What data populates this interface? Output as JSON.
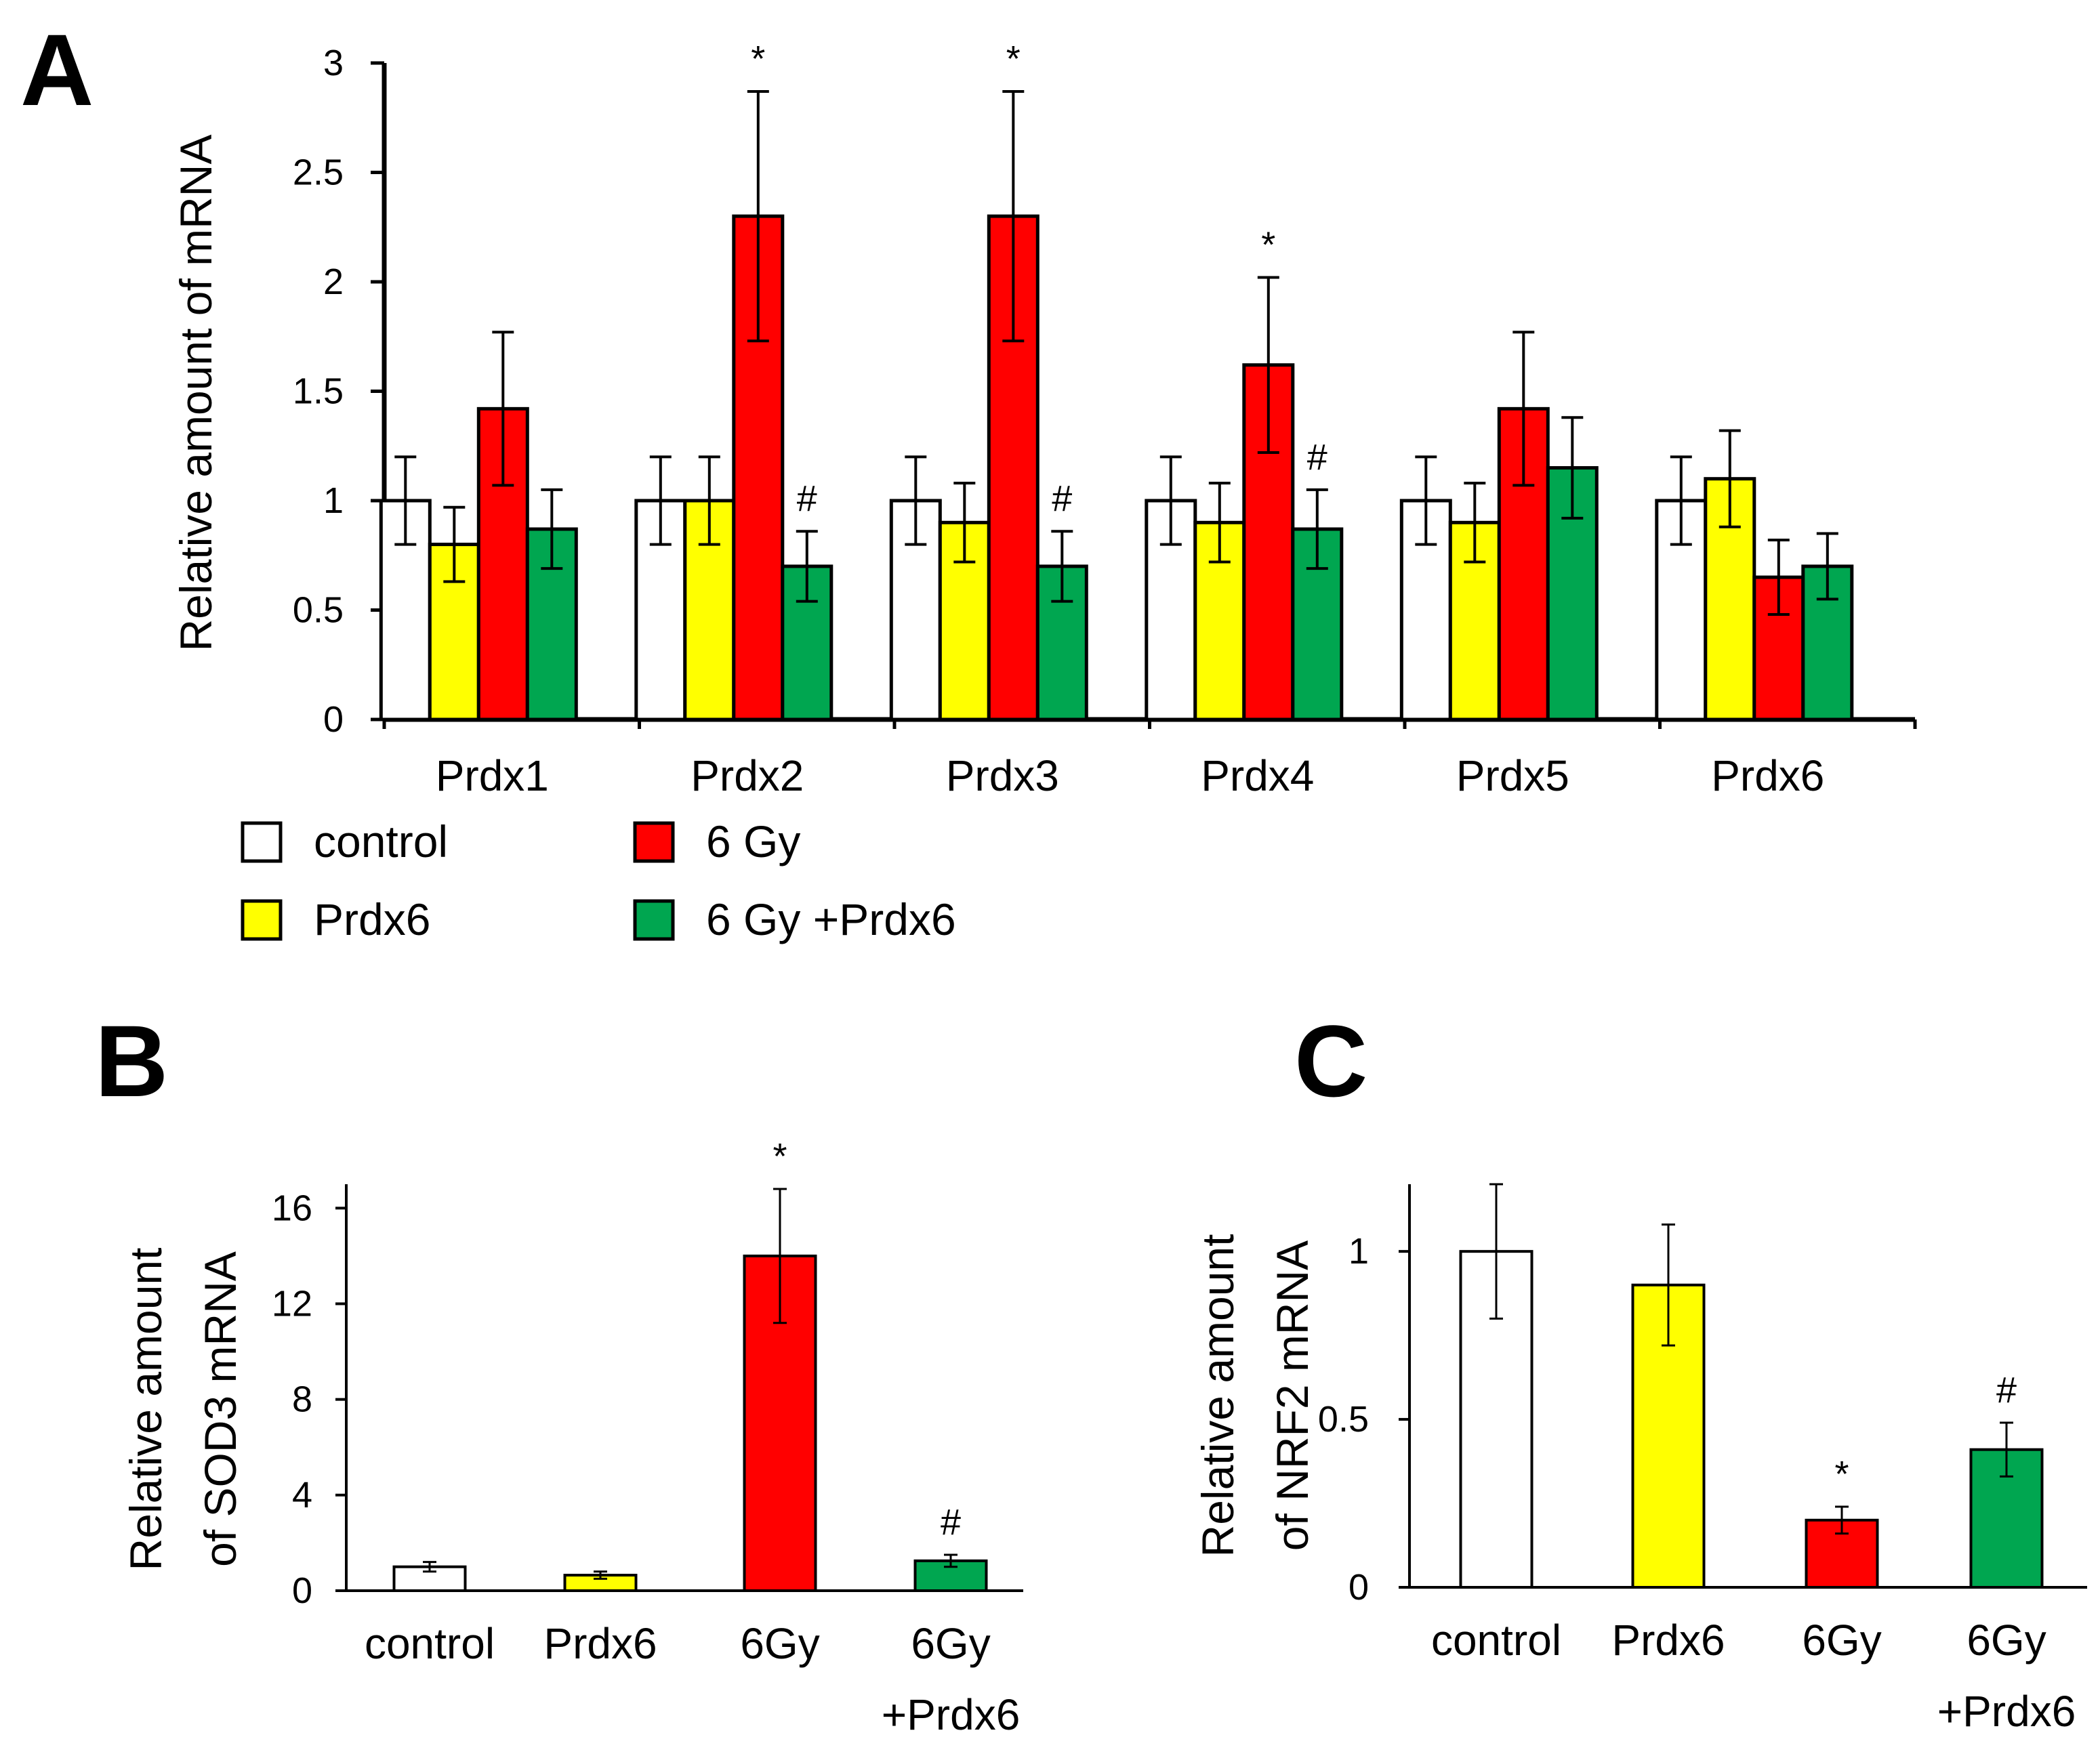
{
  "colors": {
    "control": "#ffffff",
    "Prdx6": "#ffff00",
    "6 Gy": "#ff0000",
    "6 Gy +Prdx6": "#00a650"
  },
  "legend": [
    {
      "label": "control",
      "color": "#ffffff"
    },
    {
      "label": "6 Gy",
      "color": "#ff0000"
    },
    {
      "label": "Prdx6",
      "color": "#ffff00"
    },
    {
      "label": "6 Gy +Prdx6",
      "color": "#00a650"
    }
  ],
  "chart_data": [
    {
      "panel": "A",
      "type": "bar",
      "ylabel": "Relative amount of mRNA",
      "ylim": [
        0,
        3
      ],
      "yticks": [
        "0",
        "0.5",
        "1",
        "1.5",
        "2",
        "2.5",
        "3"
      ],
      "yticks_values": [
        0,
        0.5,
        1,
        1.5,
        2,
        2.5,
        3
      ],
      "categories": [
        "Prdx1",
        "Prdx2",
        "Prdx3",
        "Prdx4",
        "Prdx5",
        "Prdx6"
      ],
      "series": [
        {
          "name": "control",
          "values": [
            1.0,
            1.0,
            1.0,
            1.0,
            1.0,
            1.0
          ],
          "errors": [
            0.2,
            0.2,
            0.2,
            0.2,
            0.2,
            0.2
          ]
        },
        {
          "name": "Prdx6",
          "values": [
            0.8,
            1.0,
            0.9,
            0.9,
            0.9,
            1.1
          ],
          "errors": [
            0.17,
            0.2,
            0.18,
            0.18,
            0.18,
            0.22
          ]
        },
        {
          "name": "6 Gy",
          "values": [
            1.42,
            2.3,
            2.3,
            1.62,
            1.42,
            0.65
          ],
          "errors": [
            0.35,
            0.57,
            0.57,
            0.4,
            0.35,
            0.17
          ]
        },
        {
          "name": "6 Gy +Prdx6",
          "values": [
            0.87,
            0.7,
            0.7,
            0.87,
            1.15,
            0.7
          ],
          "errors": [
            0.18,
            0.16,
            0.16,
            0.18,
            0.23,
            0.15
          ]
        }
      ],
      "annotations": [
        {
          "category": "Prdx2",
          "series": "6 Gy",
          "text": "*"
        },
        {
          "category": "Prdx2",
          "series": "6 Gy +Prdx6",
          "text": "#"
        },
        {
          "category": "Prdx3",
          "series": "6 Gy",
          "text": "*"
        },
        {
          "category": "Prdx3",
          "series": "6 Gy +Prdx6",
          "text": "#"
        },
        {
          "category": "Prdx4",
          "series": "6 Gy",
          "text": "*"
        },
        {
          "category": "Prdx4",
          "series": "6 Gy +Prdx6",
          "text": "#"
        }
      ]
    },
    {
      "panel": "B",
      "type": "bar",
      "ylabel": [
        "Relative amount",
        "of SOD3 mRNA"
      ],
      "ylim": [
        0,
        17
      ],
      "yticks": [
        "0",
        "4",
        "8",
        "12",
        "16"
      ],
      "yticks_values": [
        0,
        4,
        8,
        12,
        16
      ],
      "categories": [
        "control",
        "Prdx6",
        "6Gy",
        "6Gy +Prdx6"
      ],
      "category_lines": [
        [
          "control"
        ],
        [
          "Prdx6"
        ],
        [
          "6Gy"
        ],
        [
          "6Gy",
          "+Prdx6"
        ]
      ],
      "values": [
        1.0,
        0.65,
        14.0,
        1.25
      ],
      "errors": [
        0.2,
        0.15,
        2.8,
        0.25
      ],
      "colors": [
        "#ffffff",
        "#ffff00",
        "#ff0000",
        "#00a650"
      ],
      "annotations": [
        {
          "index": 2,
          "text": "*"
        },
        {
          "index": 3,
          "text": "#"
        }
      ]
    },
    {
      "panel": "C",
      "type": "bar",
      "ylabel": [
        "Relative amount",
        "of NRF2 mRNA"
      ],
      "ylim": [
        0,
        1.2
      ],
      "yticks": [
        "0",
        "0.5",
        "1"
      ],
      "yticks_values": [
        0,
        0.5,
        1
      ],
      "categories": [
        "control",
        "Prdx6",
        "6Gy",
        "6Gy +Prdx6"
      ],
      "category_lines": [
        [
          "control"
        ],
        [
          "Prdx6"
        ],
        [
          "6Gy"
        ],
        [
          "6Gy",
          "+Prdx6"
        ]
      ],
      "values": [
        1.0,
        0.9,
        0.2,
        0.41
      ],
      "errors": [
        0.2,
        0.18,
        0.04,
        0.08
      ],
      "colors": [
        "#ffffff",
        "#ffff00",
        "#ff0000",
        "#00a650"
      ],
      "annotations": [
        {
          "index": 2,
          "text": "*"
        },
        {
          "index": 3,
          "text": "#"
        }
      ]
    }
  ]
}
